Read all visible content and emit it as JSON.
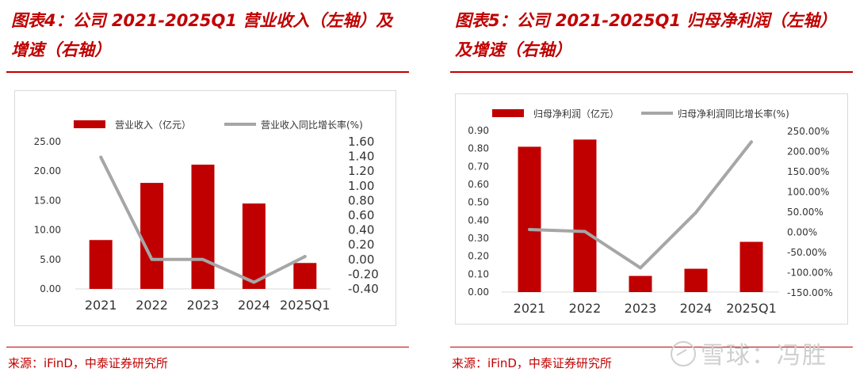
{
  "left": {
    "title": "图表4：公司 2021-2025Q1 营业收入（左轴）及增速（右轴）",
    "source": "来源：iFinD，中泰证券研究所"
  },
  "right": {
    "title": "图表5：公司 2021-2025Q1 归母净利润（左轴）及增速（右轴）",
    "source": "来源：iFinD，中泰证券研究所"
  },
  "watermark": "雪球：冯胜",
  "colors": {
    "bar": "#c00000",
    "line": "#a6a6a6",
    "title": "#c00000"
  },
  "chart_data": [
    {
      "type": "bar",
      "categories": [
        "2021",
        "2022",
        "2023",
        "2024",
        "2025Q1"
      ],
      "series": [
        {
          "name": "营业收入（亿元）",
          "type": "bar",
          "axis": "left",
          "values": [
            8.3,
            18.0,
            21.1,
            14.5,
            4.4
          ]
        },
        {
          "name": "营业收入同比增长率(%)",
          "type": "line",
          "axis": "right",
          "values": [
            1.39,
            0.0,
            0.0,
            -0.31,
            0.04
          ]
        }
      ],
      "y_left": {
        "min": 0,
        "max": 25,
        "ticks": [
          "0.00",
          "5.00",
          "10.00",
          "15.00",
          "20.00",
          "25.00"
        ]
      },
      "y_right": {
        "min": -0.4,
        "max": 1.6,
        "ticks": [
          "-0.40",
          "-0.20",
          "0.00",
          "0.20",
          "0.40",
          "0.60",
          "0.80",
          "1.00",
          "1.20",
          "1.40",
          "1.60"
        ]
      },
      "legend": "top",
      "grid": false
    },
    {
      "type": "bar",
      "categories": [
        "2021",
        "2022",
        "2023",
        "2024",
        "2025Q1"
      ],
      "series": [
        {
          "name": "归母净利润（亿元）",
          "type": "bar",
          "axis": "left",
          "values": [
            0.81,
            0.85,
            0.09,
            0.13,
            0.28
          ]
        },
        {
          "name": "归母净利润同比增长率(%)",
          "type": "line",
          "axis": "right",
          "values": [
            5.0,
            0.0,
            -90.0,
            47.0,
            222.0
          ]
        }
      ],
      "y_left": {
        "min": 0,
        "max": 0.9,
        "ticks": [
          "0.00",
          "0.10",
          "0.20",
          "0.30",
          "0.40",
          "0.50",
          "0.60",
          "0.70",
          "0.80",
          "0.90"
        ]
      },
      "y_right": {
        "min": -150,
        "max": 250,
        "ticks": [
          "-150.00%",
          "-100.00%",
          "-50.00%",
          "0.00%",
          "50.00%",
          "100.00%",
          "150.00%",
          "200.00%",
          "250.00%"
        ]
      },
      "legend": "top",
      "grid": false
    }
  ]
}
